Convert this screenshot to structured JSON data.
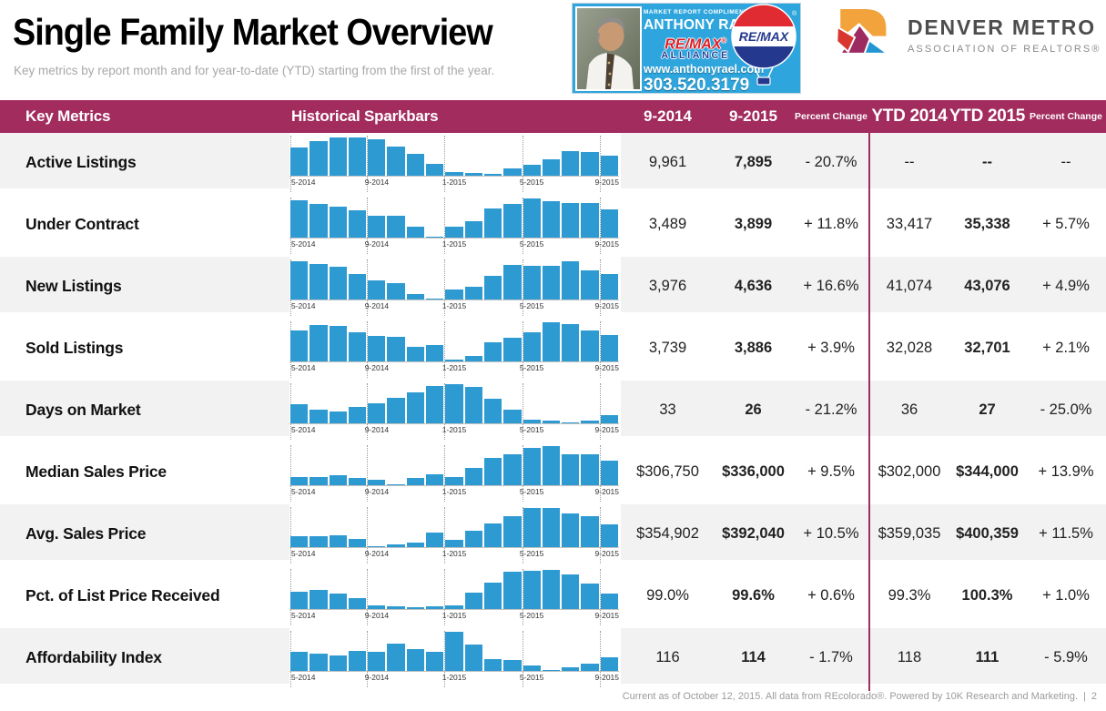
{
  "header": {
    "title": "Single Family Market Overview",
    "subtitle": "Key metrics by report month and for year-to-date (YTD) starting from the first of the year.",
    "ad": {
      "tagline": "MARKET REPORT COMPLIMENTS OF",
      "agent_name": "ANTHONY RAEL",
      "brand": "RE/MAX",
      "brand_reg": "®",
      "brand_sub": "ALLIANCE",
      "website": "www.anthonyrael.com",
      "phone": "303.520.3179",
      "balloon_brand": "RE/MAX"
    },
    "org": {
      "name": "DENVER METRO",
      "subname": "ASSOCIATION OF REALTORS®"
    }
  },
  "table": {
    "columns": [
      "Key Metrics",
      "Historical Sparkbars",
      "9-2014",
      "9-2015",
      "Percent Change",
      "YTD 2014",
      "YTD 2015",
      "Percent Change"
    ],
    "axis_labels": [
      "5-2014",
      "9-2014",
      "1-2015",
      "5-2015",
      "9-2015"
    ],
    "rows": [
      {
        "metric": "Active Listings",
        "m2014": "9,961",
        "m2015": "7,895",
        "pct": "- 20.7%",
        "ytd2014": "--",
        "ytd2015": "--",
        "ytd_pct": "--",
        "spark": [
          0.72,
          0.88,
          0.98,
          0.98,
          0.92,
          0.75,
          0.55,
          0.3,
          0.1,
          0.06,
          0.05,
          0.18,
          0.28,
          0.42,
          0.62,
          0.6,
          0.52
        ]
      },
      {
        "metric": "Under Contract",
        "m2014": "3,489",
        "m2015": "3,899",
        "pct": "+ 11.8%",
        "ytd2014": "33,417",
        "ytd2015": "35,338",
        "ytd_pct": "+ 5.7%",
        "spark": [
          0.95,
          0.86,
          0.78,
          0.7,
          0.57,
          0.55,
          0.28,
          0.03,
          0.28,
          0.43,
          0.75,
          0.87,
          1.0,
          0.92,
          0.88,
          0.88,
          0.73
        ]
      },
      {
        "metric": "New Listings",
        "m2014": "3,976",
        "m2015": "4,636",
        "pct": "+ 16.6%",
        "ytd2014": "41,074",
        "ytd2015": "43,076",
        "ytd_pct": "+ 4.9%",
        "spark": [
          0.97,
          0.9,
          0.83,
          0.65,
          0.5,
          0.42,
          0.15,
          0.03,
          0.25,
          0.33,
          0.6,
          0.88,
          0.85,
          0.87,
          0.97,
          0.75,
          0.65
        ]
      },
      {
        "metric": "Sold Listings",
        "m2014": "3,739",
        "m2015": "3,886",
        "pct": "+ 3.9%",
        "ytd2014": "32,028",
        "ytd2015": "32,701",
        "ytd_pct": "+ 2.1%",
        "spark": [
          0.8,
          0.93,
          0.9,
          0.75,
          0.65,
          0.62,
          0.38,
          0.42,
          0.04,
          0.15,
          0.48,
          0.6,
          0.75,
          1.0,
          0.95,
          0.78,
          0.68
        ]
      },
      {
        "metric": "Days on Market",
        "m2014": "33",
        "m2015": "26",
        "pct": "- 21.2%",
        "ytd2014": "36",
        "ytd2015": "27",
        "ytd_pct": "- 25.0%",
        "spark": [
          0.48,
          0.35,
          0.3,
          0.42,
          0.52,
          0.65,
          0.8,
          0.95,
          1.0,
          0.92,
          0.62,
          0.35,
          0.1,
          0.08,
          0.03,
          0.08,
          0.2
        ]
      },
      {
        "metric": "Median Sales Price",
        "m2014": "$306,750",
        "m2015": "$336,000",
        "pct": "+ 9.5%",
        "ytd2014": "$302,000",
        "ytd2015": "$344,000",
        "ytd_pct": "+ 13.9%",
        "spark": [
          0.2,
          0.22,
          0.25,
          0.18,
          0.14,
          0.03,
          0.18,
          0.27,
          0.22,
          0.45,
          0.7,
          0.8,
          0.95,
          1.0,
          0.8,
          0.78,
          0.62
        ]
      },
      {
        "metric": "Avg. Sales Price",
        "m2014": "$354,902",
        "m2015": "$392,040",
        "pct": "+ 10.5%",
        "ytd2014": "$359,035",
        "ytd2015": "$400,359",
        "ytd_pct": "+ 11.5%",
        "spark": [
          0.28,
          0.29,
          0.31,
          0.22,
          0.03,
          0.06,
          0.12,
          0.38,
          0.18,
          0.42,
          0.6,
          0.78,
          1.0,
          1.0,
          0.85,
          0.78,
          0.58
        ]
      },
      {
        "metric": "Pct. of List Price Received",
        "m2014": "99.0%",
        "m2015": "99.6%",
        "pct": "+ 0.6%",
        "ytd2014": "99.3%",
        "ytd2015": "100.3%",
        "ytd_pct": "+ 1.0%",
        "spark": [
          0.45,
          0.48,
          0.4,
          0.28,
          0.1,
          0.08,
          0.04,
          0.06,
          0.1,
          0.42,
          0.68,
          0.95,
          0.97,
          1.0,
          0.88,
          0.65,
          0.4
        ]
      },
      {
        "metric": "Affordability Index",
        "m2014": "116",
        "m2015": "114",
        "pct": "- 1.7%",
        "ytd2014": "118",
        "ytd2015": "111",
        "ytd_pct": "- 5.9%",
        "spark": [
          0.5,
          0.45,
          0.4,
          0.52,
          0.5,
          0.7,
          0.55,
          0.5,
          1.0,
          0.68,
          0.3,
          0.28,
          0.15,
          0.02,
          0.1,
          0.18,
          0.35
        ]
      }
    ]
  },
  "footer": {
    "text": "Current as of October 12, 2015. All data from REcolorado®. Powered by 10K Research and Marketing.",
    "separator": "|",
    "page": "2"
  },
  "colors": {
    "accent": "#A22C5E",
    "bar": "#2E9AD2",
    "row_alt": "#F2F2F2",
    "ad_bg": "#2EA6DD",
    "remax_red": "#DD1D25",
    "remax_blue": "#1F4096"
  }
}
